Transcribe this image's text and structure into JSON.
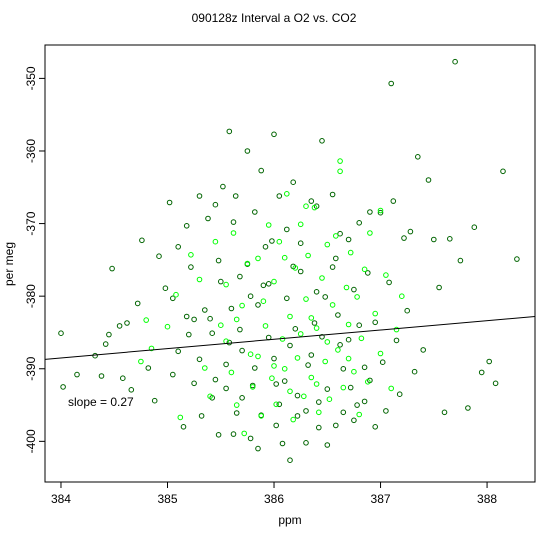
{
  "chart_data": {
    "type": "scatter",
    "title": "090128z   Interval a O2 vs. CO2",
    "xlabel": "ppm",
    "ylabel": "per meg",
    "xlim": [
      383.85,
      388.45
    ],
    "ylim": [
      -405.6,
      -345.4
    ],
    "xticks": [
      384,
      385,
      386,
      387,
      388
    ],
    "yticks": [
      -350,
      -360,
      -370,
      -380,
      -390,
      -400
    ],
    "grid": false,
    "annotation": "slope =  0.27",
    "regression_line": {
      "slope": 0.27,
      "x": [
        383.85,
        388.45
      ],
      "y": [
        -388.7,
        -382.8
      ]
    },
    "colors": {
      "dark_points": "#006400",
      "light_points": "#00ff00",
      "line": "#000000"
    },
    "series": [
      {
        "color": "dark",
        "points": [
          [
            384.0,
            -385.1
          ],
          [
            384.02,
            -392.5
          ],
          [
            384.15,
            -390.8
          ],
          [
            384.32,
            -388.2
          ],
          [
            384.38,
            -391.0
          ],
          [
            384.42,
            -386.6
          ],
          [
            384.45,
            -385.3
          ],
          [
            384.48,
            -376.2
          ],
          [
            384.55,
            -384.1
          ],
          [
            384.58,
            -391.3
          ],
          [
            384.62,
            -383.7
          ],
          [
            384.66,
            -392.9
          ],
          [
            384.72,
            -381.0
          ],
          [
            384.76,
            -372.3
          ],
          [
            384.82,
            -389.9
          ],
          [
            384.88,
            -394.4
          ],
          [
            384.92,
            -374.5
          ],
          [
            384.98,
            -378.9
          ],
          [
            385.02,
            -367.1
          ],
          [
            385.05,
            -390.8
          ],
          [
            385.1,
            -373.2
          ],
          [
            385.15,
            -398.0
          ],
          [
            385.18,
            -370.3
          ],
          [
            385.22,
            -376.0
          ],
          [
            385.25,
            -383.2
          ],
          [
            385.3,
            -366.2
          ],
          [
            385.32,
            -396.5
          ],
          [
            385.38,
            -369.3
          ],
          [
            385.42,
            -385.1
          ],
          [
            385.45,
            -367.4
          ],
          [
            385.48,
            -399.1
          ],
          [
            385.52,
            -364.9
          ],
          [
            385.55,
            -392.7
          ],
          [
            385.58,
            -357.3
          ],
          [
            385.62,
            -369.8
          ],
          [
            385.64,
            -366.2
          ],
          [
            385.68,
            -377.3
          ],
          [
            385.7,
            -394.0
          ],
          [
            385.75,
            -360.0
          ],
          [
            385.78,
            -399.6
          ],
          [
            385.82,
            -368.4
          ],
          [
            385.85,
            -401.0
          ],
          [
            385.88,
            -362.7
          ],
          [
            385.92,
            -373.2
          ],
          [
            385.95,
            -378.3
          ],
          [
            386.0,
            -357.7
          ],
          [
            386.02,
            -392.1
          ],
          [
            386.05,
            -366.2
          ],
          [
            386.08,
            -400.3
          ],
          [
            386.12,
            -370.8
          ],
          [
            386.15,
            -402.6
          ],
          [
            386.18,
            -364.3
          ],
          [
            386.22,
            -396.5
          ],
          [
            386.25,
            -372.7
          ],
          [
            386.3,
            -400.2
          ],
          [
            386.35,
            -366.9
          ],
          [
            386.4,
            -367.6
          ],
          [
            386.42,
            -394.6
          ],
          [
            386.45,
            -358.6
          ],
          [
            386.5,
            -400.5
          ],
          [
            386.55,
            -366.0
          ],
          [
            386.58,
            -397.8
          ],
          [
            386.62,
            -371.4
          ],
          [
            386.65,
            -396.0
          ],
          [
            386.7,
            -372.2
          ],
          [
            386.75,
            -397.1
          ],
          [
            386.8,
            -369.9
          ],
          [
            386.85,
            -394.5
          ],
          [
            386.9,
            -368.4
          ],
          [
            386.95,
            -398.0
          ],
          [
            387.0,
            -368.5
          ],
          [
            387.05,
            -395.8
          ],
          [
            387.1,
            -350.7
          ],
          [
            387.12,
            -366.9
          ],
          [
            387.18,
            -393.5
          ],
          [
            387.22,
            -372.0
          ],
          [
            387.28,
            -371.1
          ],
          [
            387.35,
            -360.8
          ],
          [
            387.4,
            -387.4
          ],
          [
            387.45,
            -364.0
          ],
          [
            387.5,
            -372.2
          ],
          [
            387.55,
            -378.8
          ],
          [
            387.6,
            -396.0
          ],
          [
            387.65,
            -372.1
          ],
          [
            387.7,
            -347.7
          ],
          [
            387.75,
            -375.1
          ],
          [
            387.82,
            -395.4
          ],
          [
            387.88,
            -370.5
          ],
          [
            387.95,
            -390.5
          ],
          [
            388.02,
            -389.0
          ],
          [
            388.08,
            -392.0
          ],
          [
            388.15,
            -362.8
          ],
          [
            388.28,
            -374.9
          ],
          [
            386.2,
            -384.5
          ],
          [
            385.95,
            -385.7
          ],
          [
            386.35,
            -388.1
          ],
          [
            386.6,
            -382.6
          ],
          [
            385.7,
            -387.5
          ],
          [
            386.1,
            -391.7
          ],
          [
            386.4,
            -379.4
          ],
          [
            385.85,
            -381.2
          ],
          [
            386.7,
            -386.0
          ],
          [
            385.55,
            -389.4
          ],
          [
            386.25,
            -376.6
          ],
          [
            385.4,
            -383.1
          ],
          [
            386.95,
            -383.6
          ],
          [
            386.05,
            -394.9
          ],
          [
            385.8,
            -392.3
          ],
          [
            386.5,
            -392.8
          ],
          [
            385.6,
            -381.7
          ],
          [
            386.85,
            -389.8
          ],
          [
            385.3,
            -388.7
          ],
          [
            386.15,
            -386.8
          ],
          [
            385.9,
            -378.5
          ],
          [
            386.45,
            -385.6
          ],
          [
            386.3,
            -395.8
          ],
          [
            385.5,
            -378.0
          ],
          [
            387.15,
            -386.1
          ],
          [
            385.2,
            -385.3
          ],
          [
            386.75,
            -379.1
          ],
          [
            385.75,
            -375.6
          ],
          [
            386.55,
            -376.0
          ],
          [
            385.65,
            -396.1
          ],
          [
            386.9,
            -391.6
          ],
          [
            386.0,
            -388.6
          ],
          [
            385.45,
            -391.5
          ],
          [
            386.65,
            -390.0
          ],
          [
            385.35,
            -381.9
          ],
          [
            387.25,
            -382.0
          ],
          [
            385.1,
            -387.6
          ],
          [
            386.8,
            -384.0
          ],
          [
            385.25,
            -392.0
          ],
          [
            386.12,
            -380.3
          ],
          [
            386.38,
            -383.7
          ],
          [
            385.98,
            -372.4
          ],
          [
            386.58,
            -374.8
          ],
          [
            385.68,
            -384.6
          ],
          [
            386.22,
            -393.7
          ],
          [
            385.82,
            -389.9
          ],
          [
            386.72,
            -392.6
          ],
          [
            385.58,
            -386.4
          ],
          [
            386.48,
            -380.1
          ],
          [
            387.08,
            -378.1
          ],
          [
            385.42,
            -394.0
          ],
          [
            386.88,
            -376.8
          ],
          [
            385.18,
            -382.8
          ],
          [
            387.32,
            -390.4
          ],
          [
            385.05,
            -380.3
          ],
          [
            386.02,
            -397.8
          ],
          [
            386.32,
            -389.5
          ],
          [
            385.88,
            -396.4
          ],
          [
            386.62,
            -386.7
          ],
          [
            385.48,
            -375.1
          ],
          [
            387.02,
            -389.1
          ],
          [
            385.78,
            -380.0
          ],
          [
            386.18,
            -375.9
          ],
          [
            386.42,
            -398.1
          ],
          [
            385.62,
            -399.0
          ],
          [
            386.78,
            -395.0
          ]
        ]
      },
      {
        "color": "light",
        "points": [
          [
            384.75,
            -389.0
          ],
          [
            384.8,
            -383.3
          ],
          [
            384.85,
            -387.2
          ],
          [
            385.0,
            -384.2
          ],
          [
            385.08,
            -379.8
          ],
          [
            385.12,
            -396.7
          ],
          [
            385.22,
            -374.3
          ],
          [
            385.3,
            -377.7
          ],
          [
            385.35,
            -389.9
          ],
          [
            385.4,
            -393.8
          ],
          [
            385.45,
            -372.5
          ],
          [
            385.5,
            -384.0
          ],
          [
            385.55,
            -378.4
          ],
          [
            385.6,
            -390.5
          ],
          [
            385.62,
            -371.3
          ],
          [
            385.65,
            -395.0
          ],
          [
            385.7,
            -381.3
          ],
          [
            385.72,
            -398.9
          ],
          [
            385.75,
            -375.5
          ],
          [
            385.78,
            -388.0
          ],
          [
            385.8,
            -392.5
          ],
          [
            385.85,
            -374.8
          ],
          [
            385.88,
            -396.5
          ],
          [
            385.92,
            -384.1
          ],
          [
            385.95,
            -370.2
          ],
          [
            385.98,
            -391.3
          ],
          [
            386.0,
            -378.0
          ],
          [
            386.02,
            -394.9
          ],
          [
            386.05,
            -372.5
          ],
          [
            386.08,
            -385.9
          ],
          [
            386.1,
            -390.0
          ],
          [
            386.12,
            -365.9
          ],
          [
            386.15,
            -382.8
          ],
          [
            386.18,
            -397.0
          ],
          [
            386.2,
            -376.1
          ],
          [
            386.22,
            -388.5
          ],
          [
            386.25,
            -370.1
          ],
          [
            386.28,
            -393.8
          ],
          [
            386.3,
            -380.4
          ],
          [
            386.32,
            -374.4
          ],
          [
            386.35,
            -391.2
          ],
          [
            386.38,
            -367.8
          ],
          [
            386.4,
            -384.4
          ],
          [
            386.42,
            -396.0
          ],
          [
            386.45,
            -377.5
          ],
          [
            386.48,
            -389.0
          ],
          [
            386.5,
            -372.9
          ],
          [
            386.52,
            -394.2
          ],
          [
            386.55,
            -381.2
          ],
          [
            386.58,
            -371.7
          ],
          [
            386.6,
            -387.4
          ],
          [
            386.62,
            -361.4
          ],
          [
            386.65,
            -392.6
          ],
          [
            386.68,
            -378.8
          ],
          [
            386.7,
            -383.9
          ],
          [
            386.72,
            -374.0
          ],
          [
            386.75,
            -390.4
          ],
          [
            386.78,
            -380.1
          ],
          [
            386.8,
            -396.3
          ],
          [
            386.82,
            -385.8
          ],
          [
            386.85,
            -376.3
          ],
          [
            386.88,
            -391.8
          ],
          [
            386.9,
            -371.3
          ],
          [
            386.95,
            -382.4
          ],
          [
            387.0,
            -387.9
          ],
          [
            387.05,
            -377.1
          ],
          [
            387.1,
            -392.7
          ],
          [
            387.15,
            -384.6
          ],
          [
            387.2,
            -380.0
          ],
          [
            387.0,
            -368.2
          ],
          [
            386.62,
            -362.8
          ],
          [
            386.3,
            -367.6
          ],
          [
            386.1,
            -374.7
          ],
          [
            385.85,
            -388.3
          ],
          [
            386.25,
            -385.2
          ],
          [
            386.5,
            -386.3
          ],
          [
            385.65,
            -383.2
          ],
          [
            386.0,
            -389.6
          ],
          [
            386.4,
            -392.1
          ],
          [
            385.9,
            -380.7
          ],
          [
            386.15,
            -393.1
          ],
          [
            386.7,
            -388.6
          ],
          [
            385.55,
            -386.2
          ],
          [
            386.35,
            -383.0
          ]
        ]
      }
    ]
  }
}
